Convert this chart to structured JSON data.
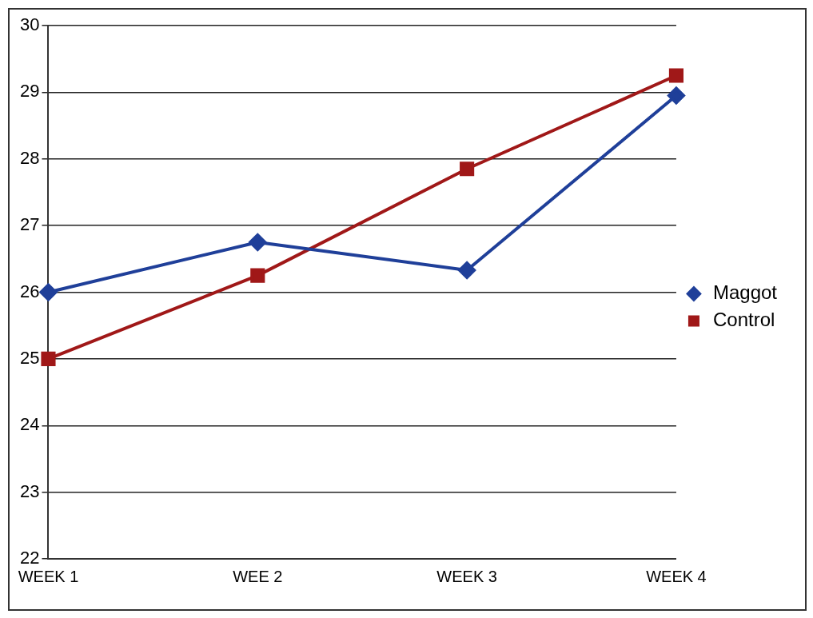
{
  "chart_data": {
    "type": "line",
    "categories": [
      "WEEK 1",
      "WEE 2",
      "WEEK 3",
      "WEEK 4"
    ],
    "series": [
      {
        "name": "Maggot",
        "color": "#1f3f99",
        "values": [
          26,
          26.75,
          26.33,
          28.95
        ],
        "marker": "diamond"
      },
      {
        "name": "Control",
        "color": "#a01818",
        "values": [
          25,
          26.25,
          27.85,
          29.25
        ],
        "marker": "square"
      }
    ],
    "ylim": [
      22,
      30
    ],
    "yticks": [
      22,
      23,
      24,
      25,
      26,
      27,
      28,
      29,
      30
    ],
    "grid": "y",
    "legend": "right",
    "line_style": "solid"
  }
}
